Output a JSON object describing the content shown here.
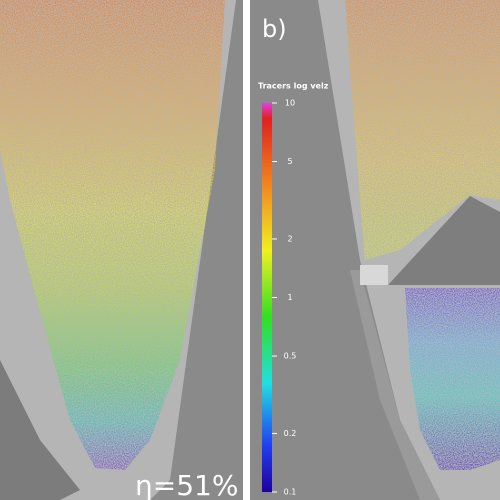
{
  "panel_label": "b)",
  "efficiency_label": "η=51%",
  "colorbar": {
    "title": "Tracers log velz",
    "lim": [
      0.1,
      10
    ],
    "log": true,
    "ticks": [
      10,
      5,
      2,
      1,
      0.5,
      0.2,
      0.1
    ]
  }
}
